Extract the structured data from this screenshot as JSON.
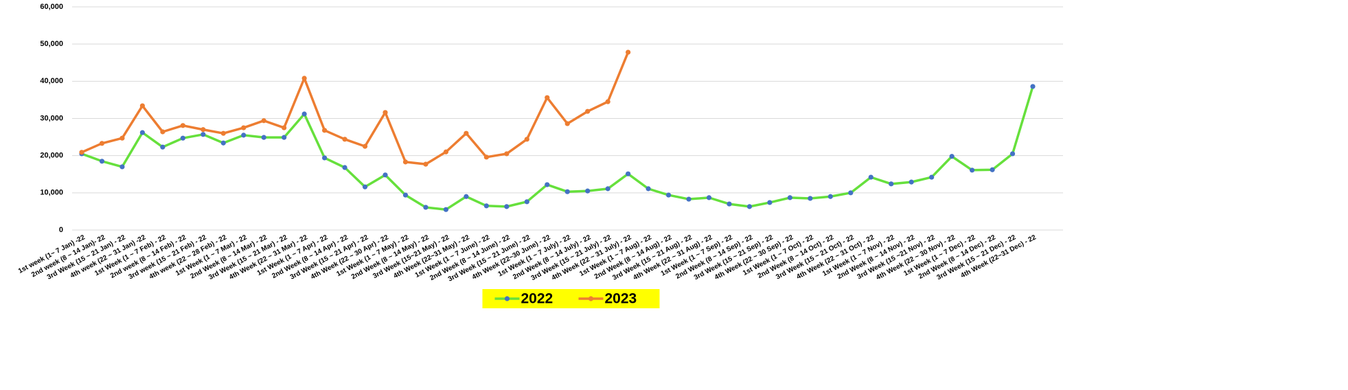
{
  "chart_data": {
    "type": "line",
    "categories": [
      "1st week (1~ 7 Jan) -22",
      "2nd week (8 ~ 14 Jan)- 22",
      "3rd Week (15 ~ 21 Jan) - 22",
      "4th week (22 ~ 31 Jan) -22",
      "1st Week (1 ~ 7 Feb) - 22",
      "2nd week (8 ~ 14 Feb) - 22",
      "3rd week (15 ~ 21 Feb) - 22",
      "4th week (22 ~ 28 Feb) - 22",
      "1st Week (1 ~ 7 Mar) - 22",
      "2nd Week (8 ~ 14 Mar) - 22",
      "3rd Week (15 ~ 21 Mar) - 22",
      "4th Week (22 ~ 31 Mar) - 22",
      "1st Week (1 ~ 7 Apr) - 22",
      "2nd Week (8 ~ 14 Apr) - 22",
      "3rd Week (15 ~ 21 Apr) - 22",
      "4th Week (22 ~ 30 Apr) - 22",
      "1st Week (1 ~ 7 May) - 22",
      "2nd Week (8 ~ 14 May) - 22",
      "3rd Week (15~21 May) - 22",
      "4th Week (22~31 May) - 22",
      "1st Week (1 ~ 7 June) - 22",
      "2nd Week (8 ~ 14 June) - 22",
      "3rd Week (15 ~ 21 June) - 22",
      "4th Week (22~30 June) - 22",
      "1st Week (1 ~ 7 July) - 22",
      "2nd Week (8 ~ 14 July) - 22",
      "3rd Week (15 ~ 21 July) - 22",
      "4th Week (22 ~ 31 July) - 22",
      "1st Week (1 ~ 7 Aug) - 22",
      "2nd Week (8 ~ 14 Aug) - 22",
      "3rd Week (15 ~ 21 Aug) - 22",
      "4th Week (22 ~ 31 Aug) - 22",
      "1st Week (1 ~ 7 Sep) - 22",
      "2nd Week (8 ~ 14 Sep) - 22",
      "3rd Week (15 ~ 21 Sep) - 22",
      "4th Week (22 ~ 30 Sep) - 22",
      "1st Week (1 ~ 7 Oct) - 22",
      "2nd Week (8 ~ 14 Oct) - 22",
      "3rd Week (15 ~ 21 Oct) - 22",
      "4th Week (22 ~ 31 Oct) - 22",
      "1st Week (1 ~ 7 Nov) - 22",
      "2nd Week (8 ~ 14 Nov) - 22",
      "3rd  Week (15 ~21 Nov) - 22",
      "4th Week (22 ~ 30 Nov) - 22",
      "1st Week (1 ~ 7 Dec) - 22",
      "2nd Week (8 ~ 14 Dec) - 22",
      "3rd Week (15 ~ 21 Dec) - 22",
      "4th Week (22~31 Dec) - 22"
    ],
    "series": [
      {
        "name": "2022",
        "color": "#66e03c",
        "marker_color": "#4472c4",
        "values": [
          20500,
          18500,
          17000,
          26200,
          22300,
          24700,
          25700,
          23400,
          25500,
          24900,
          24900,
          31200,
          19400,
          16800,
          11600,
          14800,
          9400,
          6100,
          5500,
          9000,
          6500,
          6300,
          7600,
          12200,
          10300,
          10500,
          11100,
          15100,
          11100,
          9400,
          8300,
          8700,
          7000,
          6300,
          7400,
          8700,
          8500,
          9000,
          10000,
          14200,
          12400,
          12900,
          14200,
          19800,
          16100,
          16200,
          20500,
          38600
        ]
      },
      {
        "name": "2023",
        "color": "#ed7d31",
        "marker_color": "#ed7d31",
        "values": [
          20900,
          23300,
          24700,
          33400,
          26400,
          28100,
          27000,
          26000,
          27500,
          29400,
          27500,
          40800,
          26800,
          24400,
          22500,
          31600,
          18300,
          17700,
          21000,
          26000,
          19600,
          20500,
          24400,
          35600,
          28600,
          31900,
          34500,
          47800,
          null,
          null,
          null,
          null,
          null,
          null,
          null,
          null,
          null,
          null,
          null,
          null,
          null,
          null,
          null,
          null,
          null,
          null,
          null,
          null
        ]
      }
    ],
    "ylim": [
      0,
      60000
    ],
    "yticks": [
      0,
      {
        "value": 10000,
        "label": "10,000"
      },
      {
        "value": 20000,
        "label": "20,000"
      },
      {
        "value": 30000,
        "label": "30,000"
      },
      {
        "value": 40000,
        "label": "40,000"
      },
      {
        "value": 50000,
        "label": "50,000"
      },
      {
        "value": 60000,
        "label": "60,000"
      }
    ],
    "grid": true,
    "legend": "bottom",
    "legend_background": "#ffff00"
  }
}
